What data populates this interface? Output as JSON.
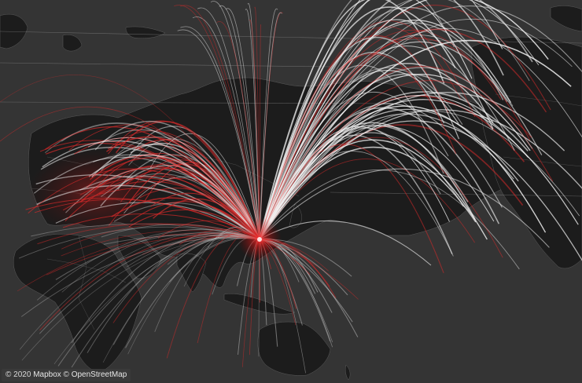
{
  "map": {
    "style": "dark",
    "colors": {
      "ocean": "#343434",
      "land": "#1c1c1c",
      "border": "#5a5a5a",
      "arc_primary": "#f2f2f2",
      "arc_secondary": "#d42a2a",
      "hub_glow": "#ff2a2a"
    },
    "layers": [
      "land",
      "country-borders",
      "flow-arcs",
      "hub-glow"
    ]
  },
  "attribution": {
    "year_prefix": "© 2020",
    "provider": "Mapbox",
    "separator": "©",
    "osm": "OpenStreetMap"
  }
}
